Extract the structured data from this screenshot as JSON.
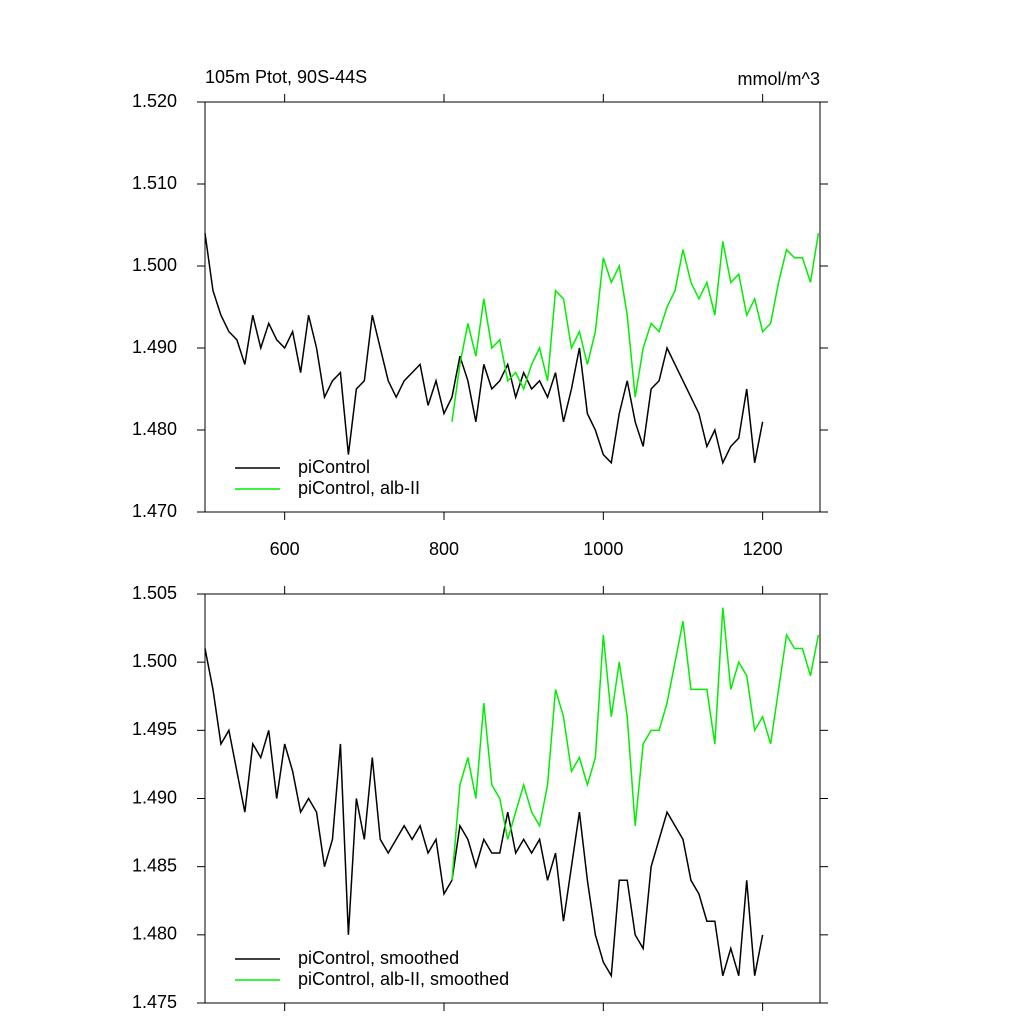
{
  "chart_data": [
    {
      "type": "line",
      "title": "105m Ptot, 90S-44S",
      "units": "mmol/m^3",
      "x": [
        500,
        510,
        520,
        530,
        540,
        550,
        560,
        570,
        580,
        590,
        600,
        610,
        620,
        630,
        640,
        650,
        660,
        670,
        680,
        690,
        700,
        710,
        720,
        730,
        740,
        750,
        760,
        770,
        780,
        790,
        800,
        810,
        820,
        830,
        840,
        850,
        860,
        870,
        880,
        890,
        900,
        910,
        920,
        930,
        940,
        950,
        960,
        970,
        980,
        990,
        1000,
        1010,
        1020,
        1030,
        1040,
        1050,
        1060,
        1070,
        1080,
        1090,
        1100,
        1110,
        1120,
        1130,
        1140,
        1150,
        1160,
        1170,
        1180,
        1190,
        1200,
        1210,
        1220,
        1230,
        1240,
        1250,
        1260,
        1270
      ],
      "series": [
        {
          "name": "piControl",
          "color": "#000000",
          "values": [
            1.504,
            1.497,
            1.494,
            1.492,
            1.491,
            1.488,
            1.494,
            1.49,
            1.493,
            1.491,
            1.49,
            1.492,
            1.487,
            1.494,
            1.49,
            1.484,
            1.486,
            1.487,
            1.477,
            1.485,
            1.486,
            1.494,
            1.49,
            1.486,
            1.484,
            1.486,
            1.487,
            1.488,
            1.483,
            1.486,
            1.482,
            1.484,
            1.489,
            1.486,
            1.481,
            1.488,
            1.485,
            1.486,
            1.488,
            1.484,
            1.487,
            1.485,
            1.486,
            1.484,
            1.487,
            1.481,
            1.485,
            1.49,
            1.482,
            1.48,
            1.477,
            1.476,
            1.482,
            1.486,
            1.481,
            1.478,
            1.485,
            1.486,
            1.49,
            1.488,
            1.486,
            1.484,
            1.482,
            1.478,
            1.48,
            1.476,
            1.478,
            1.479,
            1.485,
            1.476,
            1.481,
            null,
            null,
            null,
            null,
            null,
            null,
            null
          ]
        },
        {
          "name": "piControl, alb-II",
          "color": "#00ee00",
          "values": [
            null,
            null,
            null,
            null,
            null,
            null,
            null,
            null,
            null,
            null,
            null,
            null,
            null,
            null,
            null,
            null,
            null,
            null,
            null,
            null,
            null,
            null,
            null,
            null,
            null,
            null,
            null,
            null,
            null,
            null,
            null,
            1.481,
            1.488,
            1.493,
            1.489,
            1.496,
            1.49,
            1.491,
            1.486,
            1.487,
            1.485,
            1.488,
            1.49,
            1.486,
            1.497,
            1.496,
            1.49,
            1.492,
            1.488,
            1.492,
            1.501,
            1.498,
            1.5,
            1.494,
            1.484,
            1.49,
            1.493,
            1.492,
            1.495,
            1.497,
            1.502,
            1.498,
            1.496,
            1.498,
            1.494,
            1.503,
            1.498,
            1.499,
            1.494,
            1.496,
            1.492,
            1.493,
            1.498,
            1.502,
            1.501,
            1.501,
            1.498,
            1.504
          ]
        }
      ],
      "xlim": [
        500,
        1272
      ],
      "xticks": [
        600,
        800,
        1000,
        1200
      ],
      "show_xtick_labels": true,
      "ylim": [
        1.47,
        1.52
      ],
      "yticks": [
        {
          "value": 1.47,
          "label": "1.470"
        },
        {
          "value": 1.48,
          "label": "1.480"
        },
        {
          "value": 1.49,
          "label": "1.490"
        },
        {
          "value": 1.5,
          "label": "1.500"
        },
        {
          "value": 1.51,
          "label": "1.510"
        },
        {
          "value": 1.52,
          "label": "1.520"
        }
      ],
      "legend": "lower left"
    },
    {
      "type": "line",
      "x": [
        500,
        510,
        520,
        530,
        540,
        550,
        560,
        570,
        580,
        590,
        600,
        610,
        620,
        630,
        640,
        650,
        660,
        670,
        680,
        690,
        700,
        710,
        720,
        730,
        740,
        750,
        760,
        770,
        780,
        790,
        800,
        810,
        820,
        830,
        840,
        850,
        860,
        870,
        880,
        890,
        900,
        910,
        920,
        930,
        940,
        950,
        960,
        970,
        980,
        990,
        1000,
        1010,
        1020,
        1030,
        1040,
        1050,
        1060,
        1070,
        1080,
        1090,
        1100,
        1110,
        1120,
        1130,
        1140,
        1150,
        1160,
        1170,
        1180,
        1190,
        1200,
        1210,
        1220,
        1230,
        1240,
        1250,
        1260,
        1270
      ],
      "series": [
        {
          "name": "piControl, smoothed",
          "color": "#000000",
          "values": [
            1.501,
            1.498,
            1.494,
            1.495,
            1.492,
            1.489,
            1.494,
            1.493,
            1.495,
            1.49,
            1.494,
            1.492,
            1.489,
            1.49,
            1.489,
            1.485,
            1.487,
            1.494,
            1.48,
            1.49,
            1.487,
            1.493,
            1.487,
            1.486,
            1.487,
            1.488,
            1.487,
            1.488,
            1.486,
            1.487,
            1.483,
            1.484,
            1.488,
            1.487,
            1.485,
            1.487,
            1.486,
            1.486,
            1.489,
            1.486,
            1.487,
            1.486,
            1.487,
            1.484,
            1.486,
            1.481,
            1.485,
            1.489,
            1.484,
            1.48,
            1.478,
            1.477,
            1.484,
            1.484,
            1.48,
            1.479,
            1.485,
            1.487,
            1.489,
            1.488,
            1.487,
            1.484,
            1.483,
            1.481,
            1.481,
            1.477,
            1.479,
            1.477,
            1.484,
            1.477,
            1.48,
            null,
            null,
            null,
            null,
            null,
            null,
            null
          ]
        },
        {
          "name": "piControl, alb-II, smoothed",
          "color": "#00ee00",
          "values": [
            null,
            null,
            null,
            null,
            null,
            null,
            null,
            null,
            null,
            null,
            null,
            null,
            null,
            null,
            null,
            null,
            null,
            null,
            null,
            null,
            null,
            null,
            null,
            null,
            null,
            null,
            null,
            null,
            null,
            null,
            null,
            1.484,
            1.491,
            1.493,
            1.49,
            1.497,
            1.491,
            1.49,
            1.487,
            1.489,
            1.491,
            1.489,
            1.488,
            1.491,
            1.498,
            1.496,
            1.492,
            1.493,
            1.491,
            1.493,
            1.502,
            1.496,
            1.5,
            1.496,
            1.488,
            1.494,
            1.495,
            1.495,
            1.497,
            1.5,
            1.503,
            1.498,
            1.498,
            1.498,
            1.494,
            1.504,
            1.498,
            1.5,
            1.499,
            1.495,
            1.496,
            1.494,
            1.498,
            1.502,
            1.501,
            1.501,
            1.499,
            1.502
          ]
        }
      ],
      "xlim": [
        500,
        1272
      ],
      "xticks": [
        600,
        800,
        1000,
        1200
      ],
      "show_xtick_labels": false,
      "ylim": [
        1.475,
        1.505
      ],
      "yticks": [
        {
          "value": 1.475,
          "label": "1.475"
        },
        {
          "value": 1.48,
          "label": "1.480"
        },
        {
          "value": 1.485,
          "label": "1.485"
        },
        {
          "value": 1.49,
          "label": "1.490"
        },
        {
          "value": 1.495,
          "label": "1.495"
        },
        {
          "value": 1.5,
          "label": "1.500"
        },
        {
          "value": 1.505,
          "label": "1.505"
        }
      ],
      "legend": "lower left"
    }
  ]
}
